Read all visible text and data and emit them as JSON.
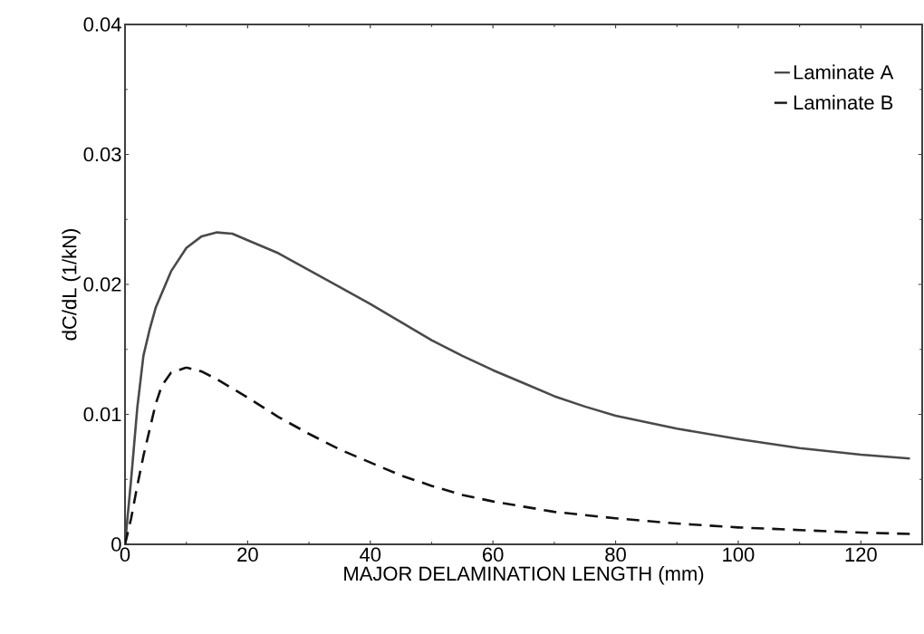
{
  "chart_data": {
    "type": "line",
    "xlabel": "MAJOR DELAMINATION LENGTH  (mm)",
    "ylabel": "dC/dL  (1/kN)",
    "xlim": [
      0,
      130
    ],
    "ylim": [
      0,
      0.04
    ],
    "xticks": [
      0,
      20,
      40,
      60,
      80,
      100,
      120
    ],
    "yticks": [
      0,
      0.01,
      0.02,
      0.03,
      0.04
    ],
    "legend": "top right",
    "grid": false,
    "marker": "none",
    "series": [
      {
        "name": "Laminate A",
        "color": "#4a4a4a",
        "line_style": "solid",
        "x": [
          0,
          1,
          2,
          3,
          4,
          5,
          7.5,
          10,
          12.5,
          15,
          17.5,
          20,
          25,
          30,
          35,
          40,
          45,
          50,
          55,
          60,
          65,
          70,
          75,
          80,
          90,
          100,
          110,
          120,
          128
        ],
        "values": [
          0,
          0.005,
          0.0105,
          0.0145,
          0.0165,
          0.0182,
          0.021,
          0.0228,
          0.0237,
          0.024,
          0.0239,
          0.0234,
          0.0224,
          0.0211,
          0.0198,
          0.0185,
          0.0171,
          0.0157,
          0.0145,
          0.0134,
          0.0124,
          0.0114,
          0.0106,
          0.0099,
          0.0089,
          0.0081,
          0.0074,
          0.0069,
          0.0066
        ]
      },
      {
        "name": "Laminate B",
        "color": "#111111",
        "line_style": "dashed",
        "x": [
          0,
          1,
          2,
          3,
          4,
          5,
          6,
          7.5,
          10,
          12.5,
          15,
          20,
          25,
          30,
          35,
          40,
          45,
          50,
          55,
          60,
          65,
          70,
          80,
          90,
          100,
          110,
          120,
          128
        ],
        "values": [
          0,
          0.002,
          0.0045,
          0.0068,
          0.0088,
          0.0108,
          0.0122,
          0.0132,
          0.0136,
          0.0133,
          0.0127,
          0.0113,
          0.0098,
          0.0085,
          0.0073,
          0.0063,
          0.0053,
          0.0045,
          0.0038,
          0.0033,
          0.0029,
          0.0025,
          0.002,
          0.0016,
          0.0013,
          0.0011,
          0.0009,
          0.0008
        ]
      }
    ]
  }
}
